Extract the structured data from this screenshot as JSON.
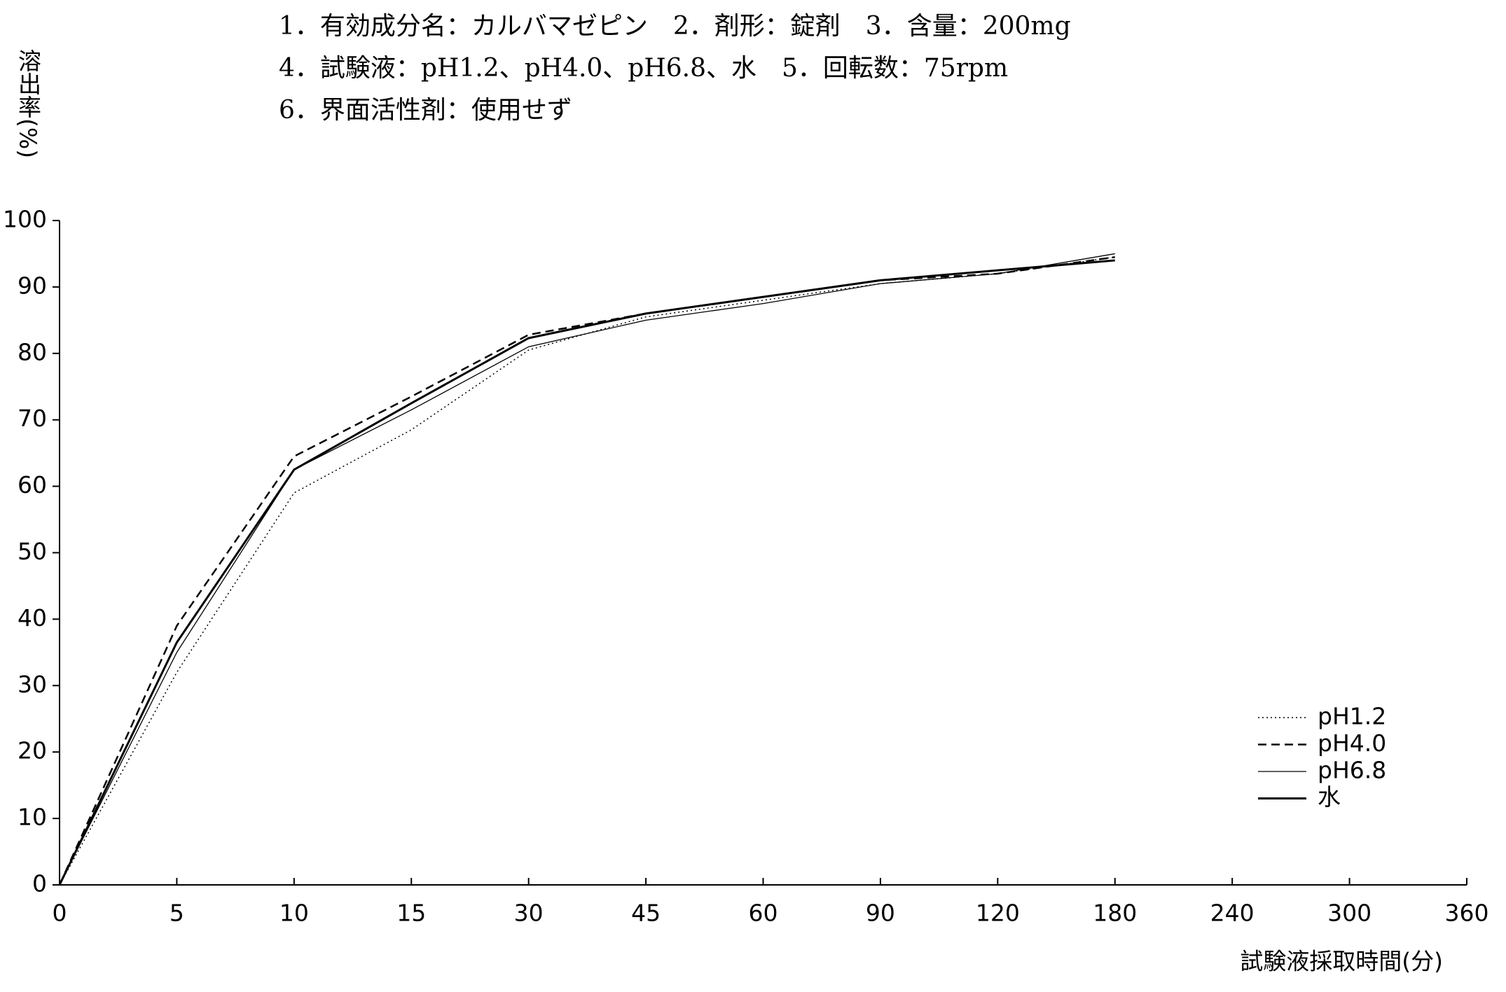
{
  "chart_data": {
    "type": "line",
    "header_lines": [
      "1．有効成分名：カルバマゼピン　2．剤形：錠剤　3．含量：200mg",
      "4．試験液：pH1.2、pH4.0、pH6.8、水　5．回転数：75rpm",
      "6．界面活性剤：使用せず"
    ],
    "y_label": "溶出率(%)",
    "x_label": "試験液採取時間(分)",
    "categories": [
      "0",
      "5",
      "10",
      "15",
      "30",
      "45",
      "60",
      "90",
      "120",
      "180",
      "240",
      "300",
      "360"
    ],
    "series": [
      {
        "name": "pH1.2",
        "color": "#000000",
        "style": "dotted",
        "values": [
          0,
          32,
          59,
          68.5,
          80.5,
          85.5,
          88,
          90.5,
          92,
          94.5,
          null,
          null,
          null
        ]
      },
      {
        "name": "pH4.0",
        "color": "#000000",
        "style": "dashed",
        "values": [
          0,
          39,
          64.5,
          73.5,
          82.8,
          86,
          88.5,
          91,
          92,
          94.5,
          null,
          null,
          null
        ]
      },
      {
        "name": "pH6.8",
        "color": "#000000",
        "style": "thin",
        "values": [
          0,
          35,
          62.5,
          71.5,
          81,
          85,
          87.5,
          90.5,
          92,
          95,
          null,
          null,
          null
        ]
      },
      {
        "name": "水",
        "color": "#000000",
        "style": "thick",
        "values": [
          0,
          36.5,
          62.5,
          72.5,
          82.3,
          86,
          88.5,
          91,
          92.5,
          94,
          null,
          null,
          null
        ]
      }
    ],
    "ylim": [
      0,
      100
    ],
    "yticks": [
      0,
      10,
      20,
      30,
      40,
      50,
      60,
      70,
      80,
      90,
      100
    ],
    "legend": "lower right"
  }
}
